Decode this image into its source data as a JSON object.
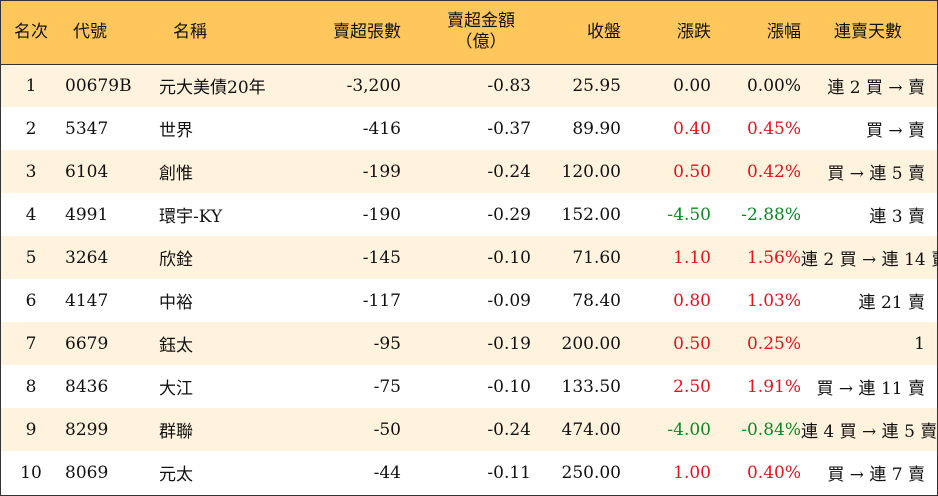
{
  "colors": {
    "header_bg": "#ffc65c",
    "stripe_bg": "#fff3de",
    "up": "#e8121b",
    "down": "#0a8a22"
  },
  "headers": {
    "rank": "名次",
    "code": "代號",
    "name": "名稱",
    "sheets": "賣超張數",
    "amount_line1": "賣超金額",
    "amount_line2": "（億）",
    "close": "收盤",
    "change": "漲跌",
    "pct": "漲幅",
    "streak": "連賣天數"
  },
  "rows": [
    {
      "rank": "1",
      "code": "00679B",
      "name": "元大美債20年",
      "sheets": "-3,200",
      "amount": "-0.83",
      "close": "25.95",
      "change": "0.00",
      "pct": "0.00%",
      "direction": "flat",
      "streak": "連 2 買 → 賣"
    },
    {
      "rank": "2",
      "code": "5347",
      "name": "世界",
      "sheets": "-416",
      "amount": "-0.37",
      "close": "89.90",
      "change": "0.40",
      "pct": "0.45%",
      "direction": "up",
      "streak": "買 → 賣"
    },
    {
      "rank": "3",
      "code": "6104",
      "name": "創惟",
      "sheets": "-199",
      "amount": "-0.24",
      "close": "120.00",
      "change": "0.50",
      "pct": "0.42%",
      "direction": "up",
      "streak": "買 → 連 5 賣"
    },
    {
      "rank": "4",
      "code": "4991",
      "name": "環宇-KY",
      "sheets": "-190",
      "amount": "-0.29",
      "close": "152.00",
      "change": "-4.50",
      "pct": "-2.88%",
      "direction": "down",
      "streak": "連 3 賣"
    },
    {
      "rank": "5",
      "code": "3264",
      "name": "欣銓",
      "sheets": "-145",
      "amount": "-0.10",
      "close": "71.60",
      "change": "1.10",
      "pct": "1.56%",
      "direction": "up",
      "streak": "連 2 買 → 連 14 賣"
    },
    {
      "rank": "6",
      "code": "4147",
      "name": "中裕",
      "sheets": "-117",
      "amount": "-0.09",
      "close": "78.40",
      "change": "0.80",
      "pct": "1.03%",
      "direction": "up",
      "streak": "連 21 賣"
    },
    {
      "rank": "7",
      "code": "6679",
      "name": "鈺太",
      "sheets": "-95",
      "amount": "-0.19",
      "close": "200.00",
      "change": "0.50",
      "pct": "0.25%",
      "direction": "up",
      "streak": "1"
    },
    {
      "rank": "8",
      "code": "8436",
      "name": "大江",
      "sheets": "-75",
      "amount": "-0.10",
      "close": "133.50",
      "change": "2.50",
      "pct": "1.91%",
      "direction": "up",
      "streak": "買 → 連 11 賣"
    },
    {
      "rank": "9",
      "code": "8299",
      "name": "群聯",
      "sheets": "-50",
      "amount": "-0.24",
      "close": "474.00",
      "change": "-4.00",
      "pct": "-0.84%",
      "direction": "down",
      "streak": "連 4 買 → 連 5 賣"
    },
    {
      "rank": "10",
      "code": "8069",
      "name": "元太",
      "sheets": "-44",
      "amount": "-0.11",
      "close": "250.00",
      "change": "1.00",
      "pct": "0.40%",
      "direction": "up",
      "streak": "買 → 連 7 賣"
    }
  ]
}
